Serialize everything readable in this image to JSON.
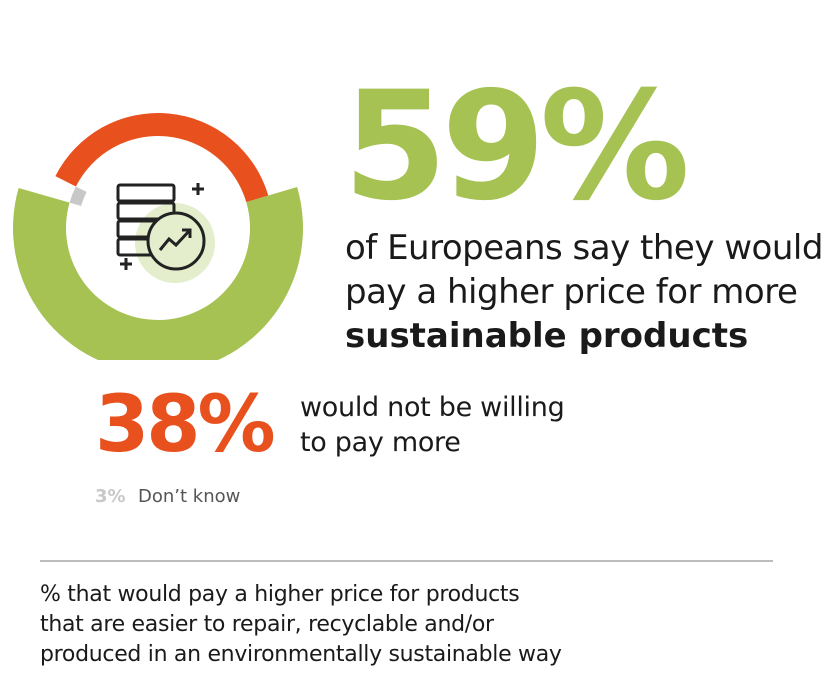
{
  "colors": {
    "green": "#a5c252",
    "orange": "#e8501e",
    "grey": "#c8c8c8",
    "icon_circle": "#e4edcc",
    "icon_stroke": "#222222"
  },
  "icons": [
    "stack-of-coins-icon",
    "trend-up-icon",
    "plus-icon"
  ],
  "chart_data": {
    "type": "pie",
    "style": "donut",
    "slices": [
      {
        "label": "would pay a higher price",
        "value": 59
      },
      {
        "label": "would not be willing to pay more",
        "value": 38
      },
      {
        "label": "Don't know",
        "value": 3
      }
    ]
  },
  "headline": {
    "value": "59%",
    "line1": "of Europeans say they would",
    "line2": "pay a higher price for more",
    "line3": "sustainable products"
  },
  "secondary": {
    "value": "38%",
    "line1": "would not be willing",
    "line2": "to pay more"
  },
  "dont_know": {
    "value": "3%",
    "label": "Don’t know"
  },
  "footer": {
    "line1": "% that would pay a higher price for products",
    "line2": "that are easier to repair, recyclable and/or",
    "line3": "produced in an environmentally sustainable way"
  }
}
